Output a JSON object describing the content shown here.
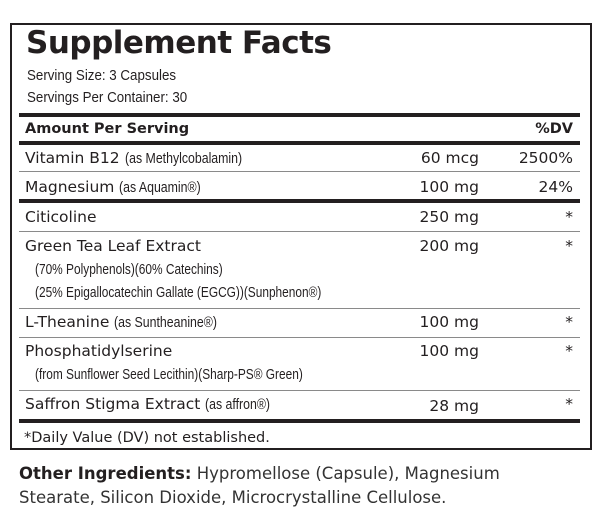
{
  "title": "Supplement Facts",
  "serving_size": "Serving Size: 3 Capsules",
  "servings_per_container": "Servings Per Container: 30",
  "header": {
    "amount": "Amount Per Serving",
    "dv": "%DV"
  },
  "rows": [
    {
      "name": "Vitamin B12",
      "qual": "(as Methylcobalamin)",
      "amount": "60 mcg",
      "dv": "2500%"
    },
    {
      "name": "Magnesium",
      "qual": "(as Aquamin®)",
      "amount": "100 mg",
      "dv": "24%"
    },
    {
      "name": "Citicoline",
      "qual": "",
      "amount": "250 mg",
      "dv": "*"
    },
    {
      "name": "Green Tea Leaf Extract",
      "qual": "",
      "amount": "200 mg",
      "dv": "*",
      "sub": [
        "(70% Polyphenols)(60% Catechins)",
        "(25% Epigallocatechin Gallate (EGCG))(Sunphenon®)"
      ]
    },
    {
      "name": "L-Theanine",
      "qual": "(as Suntheanine®)",
      "amount": "100 mg",
      "dv": "*"
    },
    {
      "name": "Phosphatidylserine",
      "qual": "",
      "amount": "100 mg",
      "dv": "*",
      "sub": [
        "(from Sunflower Seed Lecithin)(Sharp-PS® Green)"
      ]
    },
    {
      "name": "Saffron Stigma Extract",
      "qual": "(as affron®)",
      "amount": "28 mg",
      "dv": "*"
    }
  ],
  "footnote": "*Daily Value (DV) not established.",
  "other_ingredients": {
    "label": "Other Ingredients:",
    "text": "Hypromellose (Capsule), Magnesium Stearate, Silicon Dioxide, Microcrystalline Cellulose."
  }
}
